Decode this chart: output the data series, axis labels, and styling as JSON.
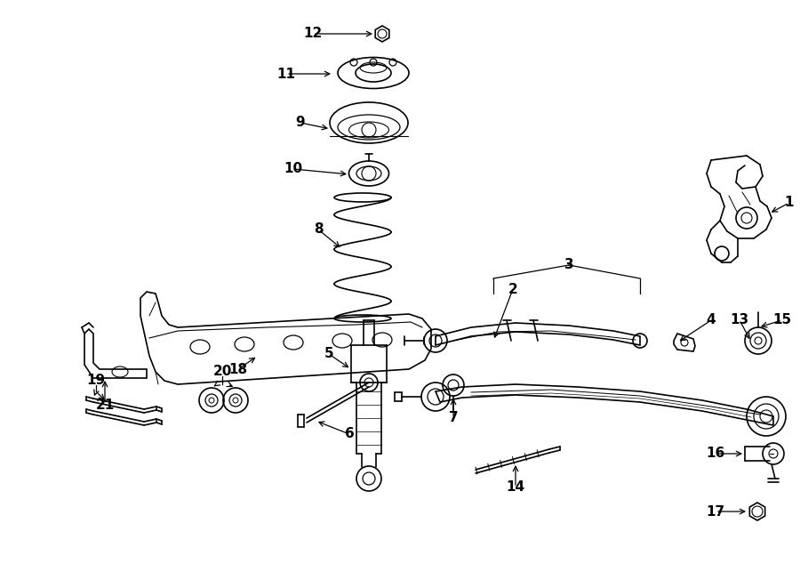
{
  "bg_color": "#ffffff",
  "line_color": "#000000",
  "fig_width": 9.0,
  "fig_height": 6.61,
  "dpi": 100,
  "xlim": [
    0,
    900
  ],
  "ylim": [
    0,
    661
  ]
}
